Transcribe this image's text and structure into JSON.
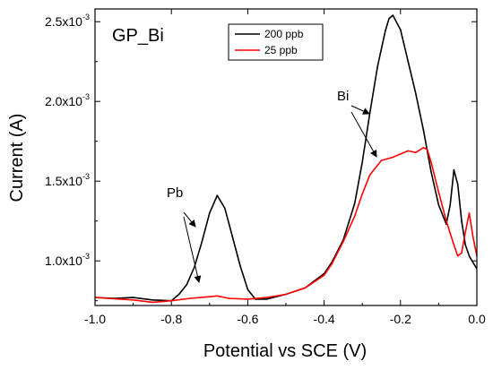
{
  "chart_data": {
    "type": "line",
    "title": "GP_Bi",
    "xlabel": "Potential vs SCE (V)",
    "ylabel": "Current (A)",
    "xlim": [
      -1.0,
      0.0
    ],
    "ylim": [
      0.00072,
      0.00258
    ],
    "x_ticks": [
      -1.0,
      -0.8,
      -0.6,
      -0.4,
      -0.2,
      0.0
    ],
    "x_tick_labels": [
      "-1.0",
      "-0.8",
      "-0.6",
      "-0.4",
      "-0.2",
      "0.0"
    ],
    "y_ticks": [
      {
        "value": 0.001,
        "mantissa": "1.0x10",
        "exponent": "-3"
      },
      {
        "value": 0.0015,
        "mantissa": "1.5x10",
        "exponent": "-3"
      },
      {
        "value": 0.002,
        "mantissa": "2.0x10",
        "exponent": "-3"
      },
      {
        "value": 0.0025,
        "mantissa": "2.5x10",
        "exponent": "-3"
      }
    ],
    "legend_position": "top-center",
    "series": [
      {
        "name": "200 ppb",
        "color": "#000000",
        "x": [
          -1.0,
          -0.95,
          -0.9,
          -0.85,
          -0.8,
          -0.78,
          -0.76,
          -0.74,
          -0.72,
          -0.7,
          -0.68,
          -0.66,
          -0.64,
          -0.62,
          -0.6,
          -0.58,
          -0.55,
          -0.5,
          -0.45,
          -0.4,
          -0.38,
          -0.35,
          -0.32,
          -0.3,
          -0.28,
          -0.26,
          -0.24,
          -0.23,
          -0.22,
          -0.2,
          -0.18,
          -0.16,
          -0.14,
          -0.12,
          -0.1,
          -0.08,
          -0.07,
          -0.06,
          -0.05,
          -0.04,
          -0.03,
          -0.02,
          -0.01,
          0.0
        ],
        "y": [
          0.00077,
          0.000765,
          0.00077,
          0.000755,
          0.00075,
          0.00079,
          0.00085,
          0.00096,
          0.00112,
          0.0013,
          0.00141,
          0.00133,
          0.00115,
          0.00097,
          0.00082,
          0.00076,
          0.00076,
          0.00079,
          0.00083,
          0.00092,
          0.00099,
          0.00113,
          0.00136,
          0.00162,
          0.00193,
          0.00222,
          0.00244,
          0.00252,
          0.00254,
          0.00245,
          0.00225,
          0.00205,
          0.00182,
          0.00156,
          0.00135,
          0.00123,
          0.00135,
          0.00157,
          0.00148,
          0.00125,
          0.0011,
          0.00103,
          0.00099,
          0.00095
        ]
      },
      {
        "name": "25 ppb",
        "color": "#ff0000",
        "x": [
          -1.0,
          -0.9,
          -0.85,
          -0.8,
          -0.75,
          -0.7,
          -0.68,
          -0.65,
          -0.6,
          -0.55,
          -0.5,
          -0.45,
          -0.4,
          -0.38,
          -0.35,
          -0.32,
          -0.3,
          -0.28,
          -0.25,
          -0.22,
          -0.2,
          -0.18,
          -0.16,
          -0.14,
          -0.13,
          -0.12,
          -0.1,
          -0.08,
          -0.06,
          -0.05,
          -0.04,
          -0.03,
          -0.02,
          -0.01,
          0.0
        ],
        "y": [
          0.00077,
          0.000755,
          0.00074,
          0.00075,
          0.000765,
          0.000775,
          0.00078,
          0.000765,
          0.00076,
          0.00077,
          0.00079,
          0.00083,
          0.00091,
          0.00098,
          0.00112,
          0.00128,
          0.00142,
          0.00154,
          0.00163,
          0.00165,
          0.00167,
          0.00169,
          0.00168,
          0.00171,
          0.0017,
          0.00162,
          0.00143,
          0.00125,
          0.0011,
          0.00103,
          0.00105,
          0.00118,
          0.0013,
          0.00115,
          0.00103
        ]
      }
    ],
    "annotations": [
      {
        "text": "Bi",
        "targets": "both-peaks-near-x=-0.25"
      },
      {
        "text": "Pb",
        "targets": "both-peaks-near-x=-0.68"
      }
    ]
  }
}
